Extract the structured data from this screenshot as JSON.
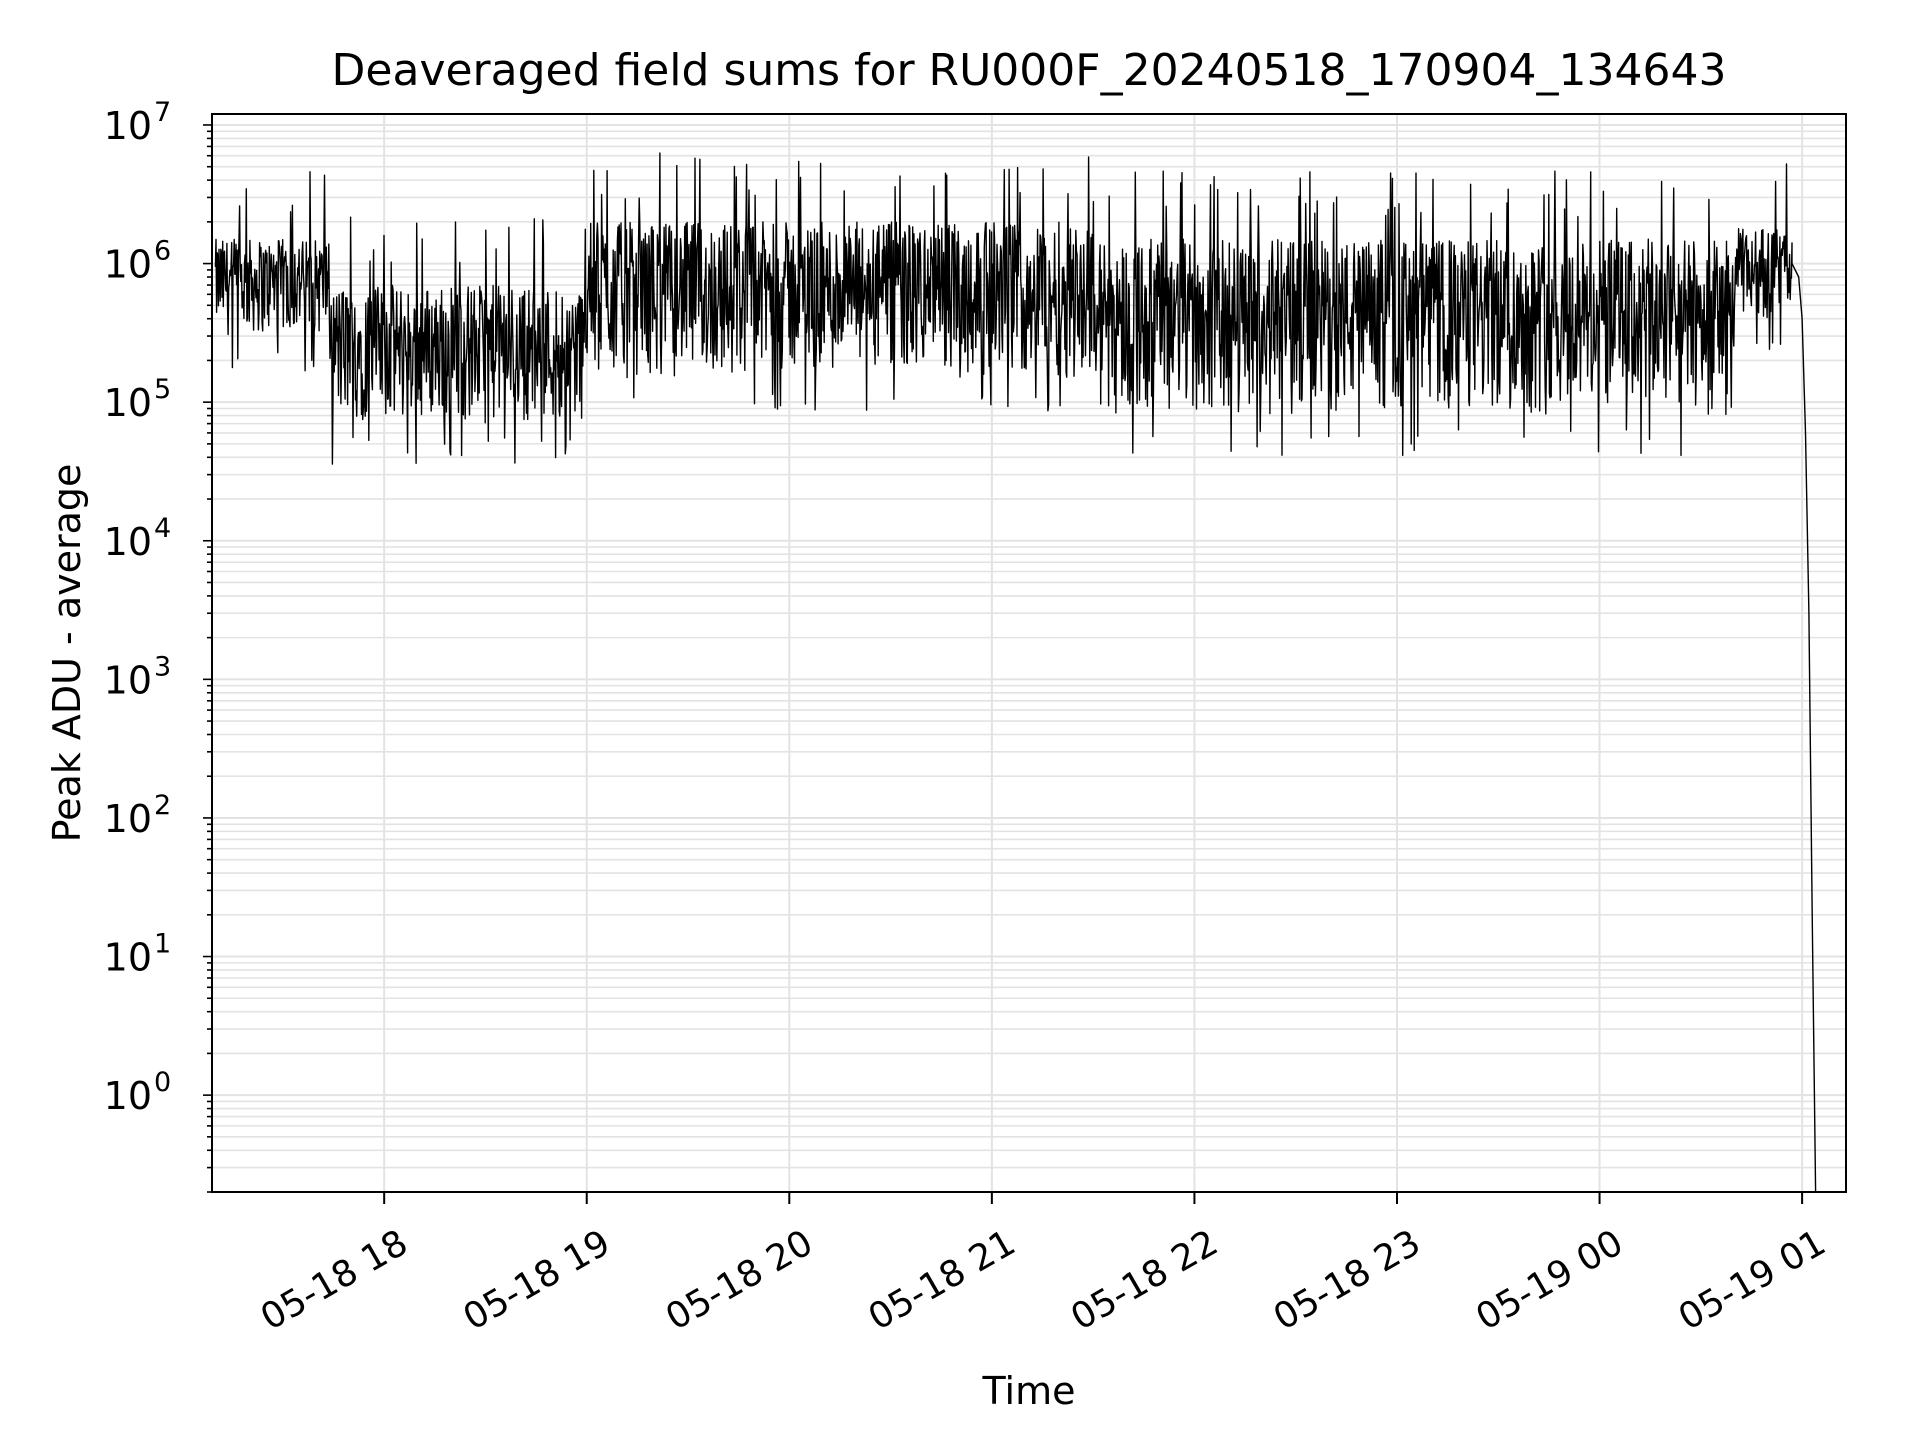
{
  "chart_data": {
    "type": "line",
    "title": "Deaveraged field sums for RU000F_20240518_170904_134643",
    "xlabel": "Time",
    "ylabel": "Peak ADU - average",
    "y_scale": "log",
    "ylim": [
      0.2,
      12000000
    ],
    "xlim": [
      "2024-05-18 17:09",
      "2024-05-19 01:13"
    ],
    "x_ticks": [
      {
        "value": "2024-05-18 18:00",
        "label": "05-18 18"
      },
      {
        "value": "2024-05-18 19:00",
        "label": "05-18 19"
      },
      {
        "value": "2024-05-18 20:00",
        "label": "05-18 20"
      },
      {
        "value": "2024-05-18 21:00",
        "label": "05-18 21"
      },
      {
        "value": "2024-05-18 22:00",
        "label": "05-18 22"
      },
      {
        "value": "2024-05-18 23:00",
        "label": "05-18 23"
      },
      {
        "value": "2024-05-19 00:00",
        "label": "05-19 00"
      },
      {
        "value": "2024-05-19 01:00",
        "label": "05-19 01"
      }
    ],
    "y_ticks": [
      {
        "value": 1,
        "mantissa": "10",
        "exponent": "0"
      },
      {
        "value": 10,
        "mantissa": "10",
        "exponent": "1"
      },
      {
        "value": 100,
        "mantissa": "10",
        "exponent": "2"
      },
      {
        "value": 1000,
        "mantissa": "10",
        "exponent": "3"
      },
      {
        "value": 10000,
        "mantissa": "10",
        "exponent": "4"
      },
      {
        "value": 100000,
        "mantissa": "10",
        "exponent": "5"
      },
      {
        "value": 1000000,
        "mantissa": "10",
        "exponent": "6"
      },
      {
        "value": 10000000,
        "mantissa": "10",
        "exponent": "7"
      }
    ],
    "grid": true,
    "legend": "none",
    "series": [
      {
        "color": "#000000",
        "x": [
          "2024-05-18 17:10",
          "2024-05-18 17:11",
          "2024-05-18 17:13",
          "2024-05-18 17:16",
          "2024-05-18 17:20",
          "2024-05-18 17:23",
          "2024-05-18 17:26",
          "2024-05-18 17:29",
          "2024-05-18 17:32",
          "2024-05-18 17:35",
          "2024-05-18 17:38",
          "2024-05-18 17:41",
          "2024-05-18 17:44",
          "2024-05-18 17:47",
          "2024-05-18 17:50",
          "2024-05-18 17:52",
          "2024-05-18 17:56",
          "2024-05-18 18:00",
          "2024-05-18 18:05",
          "2024-05-18 18:10",
          "2024-05-18 18:15",
          "2024-05-18 18:20",
          "2024-05-18 18:25",
          "2024-05-18 18:30",
          "2024-05-18 18:35",
          "2024-05-18 18:40",
          "2024-05-18 18:45",
          "2024-05-18 18:50",
          "2024-05-18 18:55",
          "2024-05-18 19:00",
          "2024-05-18 19:05",
          "2024-05-18 19:10",
          "2024-05-18 19:15",
          "2024-05-18 19:20",
          "2024-05-18 19:25",
          "2024-05-18 19:30",
          "2024-05-18 19:35",
          "2024-05-18 19:40",
          "2024-05-18 19:45",
          "2024-05-18 19:50",
          "2024-05-18 19:55",
          "2024-05-18 20:00",
          "2024-05-18 20:10",
          "2024-05-18 20:20",
          "2024-05-18 20:30",
          "2024-05-18 20:40",
          "2024-05-18 20:50",
          "2024-05-18 21:00",
          "2024-05-18 21:10",
          "2024-05-18 21:20",
          "2024-05-18 21:30",
          "2024-05-18 21:40",
          "2024-05-18 21:50",
          "2024-05-18 22:00",
          "2024-05-18 22:10",
          "2024-05-18 22:20",
          "2024-05-18 22:30",
          "2024-05-18 22:40",
          "2024-05-18 22:50",
          "2024-05-18 23:00",
          "2024-05-18 23:10",
          "2024-05-18 23:20",
          "2024-05-18 23:30",
          "2024-05-18 23:40",
          "2024-05-18 23:50",
          "2024-05-19 00:00",
          "2024-05-19 00:10",
          "2024-05-19 00:20",
          "2024-05-19 00:30",
          "2024-05-19 00:40",
          "2024-05-19 00:50",
          "2024-05-19 00:53",
          "2024-05-19 00:55",
          "2024-05-19 00:57",
          "2024-05-19 00:59",
          "2024-05-19 01:00",
          "2024-05-19 01:01",
          "2024-05-19 01:02",
          "2024-05-19 01:03",
          "2024-05-19 01:04"
        ],
        "y": [
          700000,
          800000,
          500000,
          200000,
          800000,
          900000,
          2000000,
          500000,
          1000000,
          600000,
          900000,
          400000,
          2500000,
          300000,
          150000,
          400000,
          120000,
          90000,
          100000,
          80000,
          120000,
          100000,
          150000,
          300000,
          100000,
          150000,
          120000,
          200000,
          150000,
          300000,
          900000,
          1000000,
          1200000,
          1500000,
          2500000,
          800000,
          600000,
          1000000,
          500000,
          900000,
          400000,
          1000000,
          700000,
          500000,
          900000,
          1000000,
          1100000,
          1000000,
          600000,
          400000,
          800000,
          300000,
          500000,
          600000,
          400000,
          300000,
          500000,
          250000,
          300000,
          200000,
          300000,
          250000,
          200000,
          150000,
          200000,
          150000,
          200000,
          120000,
          180000,
          300000,
          700000,
          900000,
          1100000,
          1000000,
          800000,
          400000,
          60000,
          3000,
          20,
          0.2
        ],
        "x_dense_start": "2024-05-18 17:10",
        "x_dense_end": "2024-05-19 00:57",
        "y_band": [
          {
            "x_start": "2024-05-18 17:10",
            "x_end": "2024-05-18 17:44",
            "low": 300000,
            "high": 1500000
          },
          {
            "x_start": "2024-05-18 17:44",
            "x_end": "2024-05-18 19:00",
            "low": 70000,
            "high": 700000
          },
          {
            "x_start": "2024-05-18 19:00",
            "x_end": "2024-05-18 21:30",
            "low": 150000,
            "high": 2000000
          },
          {
            "x_start": "2024-05-18 21:30",
            "x_end": "2024-05-19 00:40",
            "low": 80000,
            "high": 1500000
          },
          {
            "x_start": "2024-05-19 00:40",
            "x_end": "2024-05-19 00:57",
            "low": 400000,
            "high": 1800000
          }
        ]
      }
    ]
  }
}
